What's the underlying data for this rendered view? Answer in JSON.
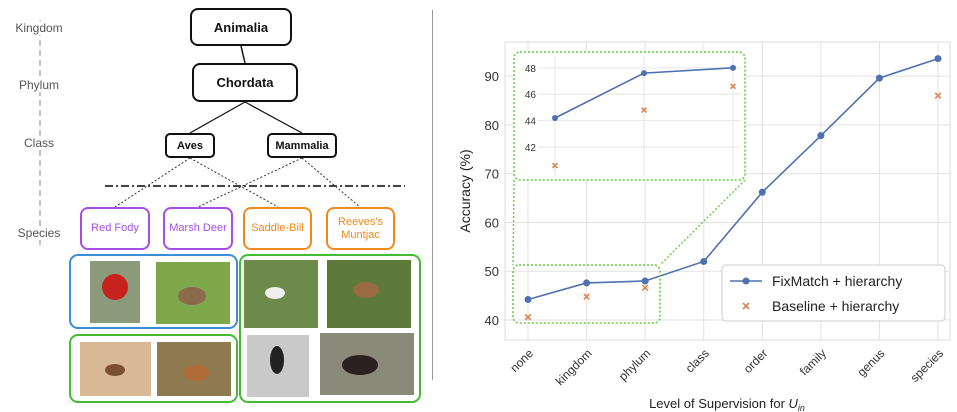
{
  "diagram": {
    "ranks": [
      "Kingdom",
      "Phylum",
      "Class",
      "Species"
    ],
    "nodes": [
      {
        "label": "Animalia"
      },
      {
        "label": "Chordata"
      },
      {
        "label": "Aves"
      },
      {
        "label": "Mammalia"
      },
      {
        "label": "Red Fody"
      },
      {
        "label": "Marsh Deer"
      },
      {
        "label": "Saddle-Bill"
      },
      {
        "label": "Reeves's Muntjac"
      }
    ]
  },
  "chart_data": {
    "type": "line",
    "ylabel": "Accuracy (%)",
    "xlabel": {
      "text": "Level of Supervision for ",
      "var": "U",
      "sub": "in"
    },
    "categories": [
      "none",
      "kingdom",
      "phylum",
      "class",
      "order",
      "family",
      "genus",
      "species"
    ],
    "series": [
      {
        "name": "FixMatch + hierarchy",
        "color": "#4c72b0",
        "marker": "o",
        "values": [
          44.2,
          47.6,
          48.0,
          52.0,
          66.2,
          77.8,
          89.6,
          93.6
        ]
      },
      {
        "name": "Baseline + hierarchy",
        "color": "#dd8452",
        "marker": "x",
        "values": [
          40.6,
          44.8,
          46.6,
          null,
          null,
          null,
          null,
          86.0
        ]
      }
    ],
    "ylim": [
      35.9,
      97
    ],
    "yticks": [
      40,
      50,
      60,
      70,
      80,
      90
    ],
    "grid": true,
    "legend": "lower right",
    "inset": {
      "ylim": [
        39.5,
        49.2
      ],
      "yticks": [
        42,
        44,
        46,
        48
      ],
      "color": "#66cc44"
    }
  }
}
